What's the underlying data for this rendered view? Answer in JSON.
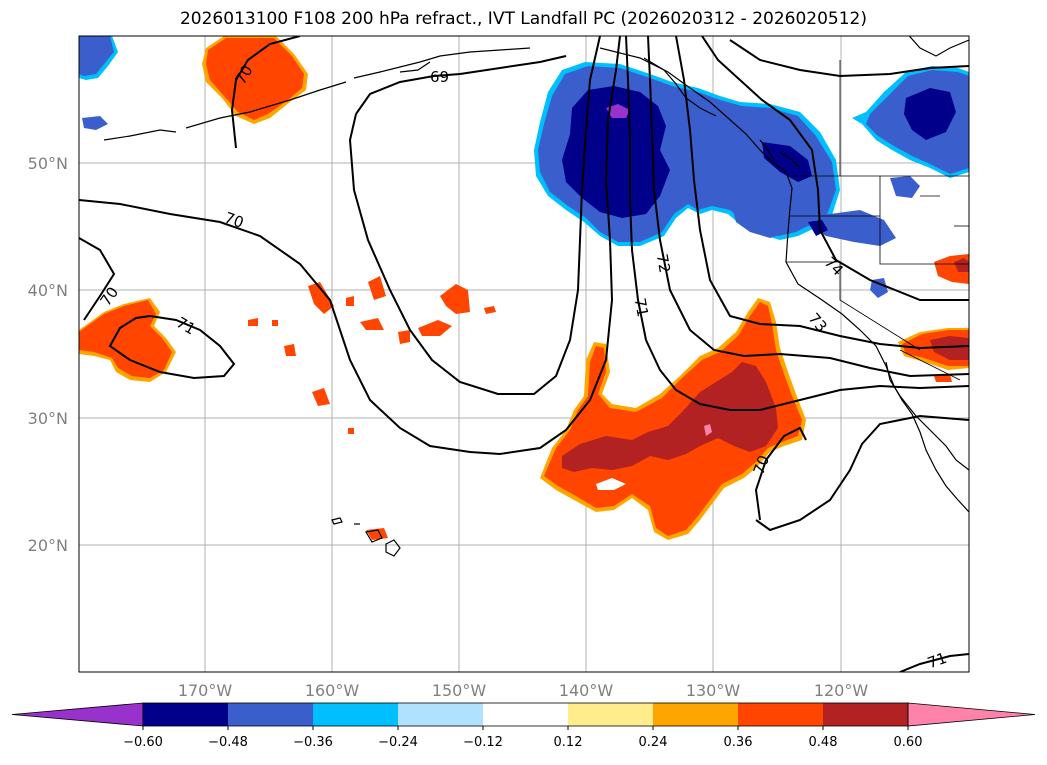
{
  "title": "2026013100 F108 200 hPa refract., IVT Landfall PC (2026020312 - 2026020512)",
  "latitudes": [
    "50°N",
    "40°N",
    "30°N",
    "20°N"
  ],
  "longitudes": [
    "170°W",
    "160°W",
    "150°W",
    "140°W",
    "130°W",
    "120°W"
  ],
  "contour_labels": [
    "69",
    "70",
    "70",
    "70",
    "71",
    "71",
    "72",
    "73",
    "74",
    "70",
    "71"
  ],
  "colorbar": {
    "ticks": [
      "−0.60",
      "−0.48",
      "−0.36",
      "−0.24",
      "−0.12",
      "0.12",
      "0.24",
      "0.36",
      "0.48",
      "0.60"
    ],
    "colors": [
      "#9932cc",
      "#00008b",
      "#3a5fcd",
      "#00bfff",
      "#b0e2ff",
      "#ffffff",
      "#ffec8b",
      "#ffa500",
      "#ff4500",
      "#b22222",
      "#ff82ab"
    ]
  },
  "fill_colors": {
    "strong_neg": "#00008b",
    "neg": "#3a5fcd",
    "light_neg": "#00bfff",
    "vlight_neg": "#b0e2ff",
    "extreme_neg": "#9932cc",
    "pos": "#ff4500",
    "strong_pos": "#b22222",
    "light_pos": "#ffa500",
    "vlight_pos": "#ffec8b",
    "extreme_pos": "#ff82ab"
  }
}
